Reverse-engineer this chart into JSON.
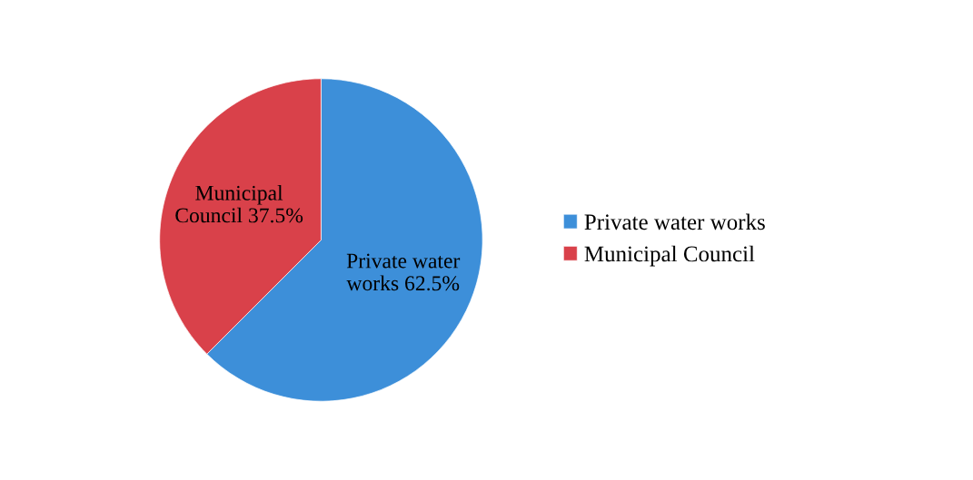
{
  "chart_data": {
    "type": "pie",
    "categories": [
      "Private water works",
      "Municipal Council"
    ],
    "values": [
      62.5,
      37.5
    ],
    "colors": [
      "#3d8fd9",
      "#d9414a"
    ],
    "value_labels": [
      "Private water\nworks 62.5%",
      "Municipal\nCouncil 37.5%"
    ],
    "legend": "right"
  }
}
